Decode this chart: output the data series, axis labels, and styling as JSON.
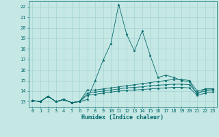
{
  "title": "",
  "xlabel": "Humidex (Indice chaleur)",
  "xlim": [
    -0.5,
    23.5
  ],
  "ylim": [
    12.5,
    22.5
  ],
  "xticks": [
    0,
    1,
    2,
    3,
    4,
    5,
    6,
    7,
    8,
    9,
    10,
    11,
    12,
    13,
    14,
    15,
    16,
    17,
    18,
    19,
    20,
    21,
    22,
    23
  ],
  "yticks": [
    13,
    14,
    15,
    16,
    17,
    18,
    19,
    20,
    21,
    22
  ],
  "background_color": "#c5e8e5",
  "grid_color": "#9ecece",
  "line_color": "#006868",
  "series": [
    [
      13.1,
      13.0,
      13.5,
      13.0,
      13.2,
      12.9,
      13.0,
      13.2,
      15.0,
      16.9,
      18.5,
      22.2,
      19.4,
      17.8,
      19.7,
      17.4,
      15.3,
      15.5,
      15.3,
      15.0,
      14.9,
      13.7,
      14.2,
      14.2
    ],
    [
      13.1,
      13.0,
      13.5,
      13.0,
      13.2,
      12.9,
      13.0,
      14.1,
      14.1,
      14.2,
      14.3,
      14.4,
      14.5,
      14.6,
      14.7,
      14.8,
      14.9,
      15.0,
      15.1,
      15.1,
      15.0,
      14.0,
      14.2,
      14.2
    ],
    [
      13.1,
      13.0,
      13.5,
      13.0,
      13.2,
      12.9,
      13.0,
      13.8,
      13.9,
      14.0,
      14.1,
      14.2,
      14.3,
      14.35,
      14.4,
      14.5,
      14.55,
      14.6,
      14.65,
      14.65,
      14.6,
      13.8,
      14.0,
      14.1
    ],
    [
      13.1,
      13.0,
      13.5,
      13.0,
      13.2,
      12.9,
      13.0,
      13.6,
      13.7,
      13.8,
      13.9,
      14.0,
      14.05,
      14.1,
      14.15,
      14.2,
      14.25,
      14.3,
      14.35,
      14.35,
      14.3,
      13.6,
      13.8,
      13.9
    ]
  ],
  "tick_fontsize": 5.0,
  "xlabel_fontsize": 6.0
}
